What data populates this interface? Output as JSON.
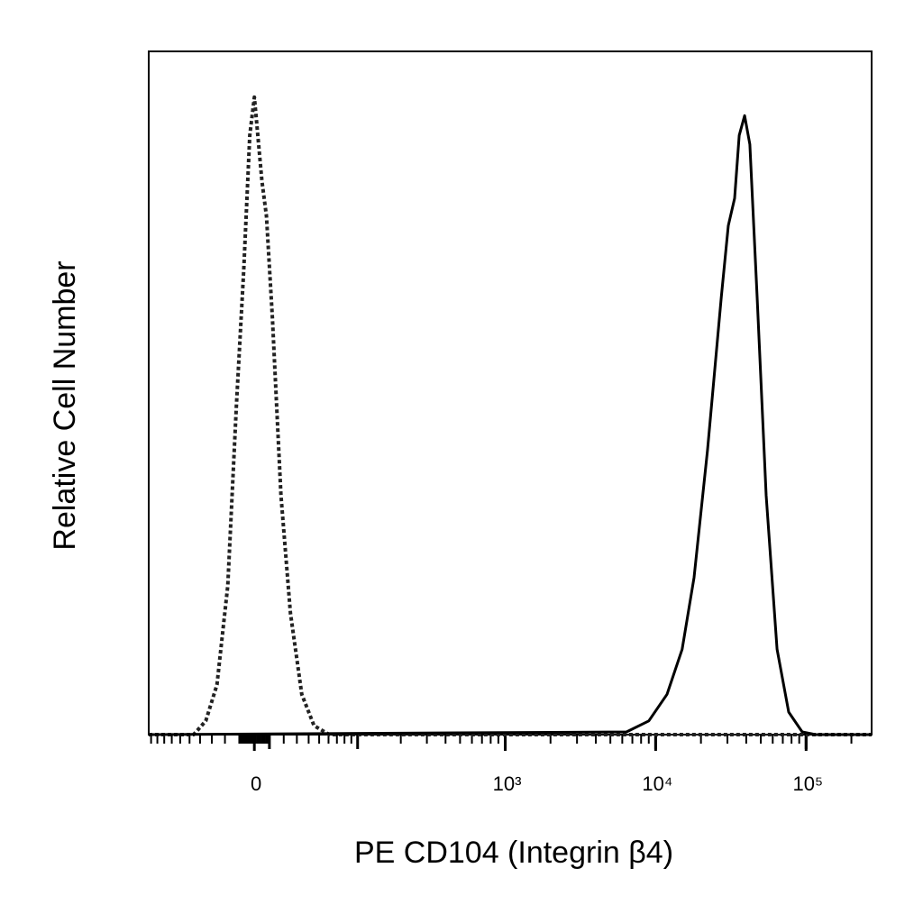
{
  "chart_data": {
    "type": "line",
    "xlabel": "PE  CD104 (Integrin β4)",
    "ylabel": "Relative Cell Number",
    "xscale": "biexponential",
    "xlim": [
      -104,
      272600
    ],
    "ylim": [
      0,
      100
    ],
    "xticks": [
      {
        "value": 0,
        "label": "0"
      },
      {
        "value": 1000,
        "label": "10³"
      },
      {
        "value": 10000,
        "label": "10⁴"
      },
      {
        "value": 100000,
        "label": "10⁵"
      }
    ],
    "series": [
      {
        "color": "#222222",
        "style": "dotted",
        "x": [
          -104,
          -46,
          -35,
          -26,
          -18,
          -12,
          -7,
          -3,
          0,
          5,
          8,
          12,
          18,
          25,
          34,
          45,
          61,
          272600
        ],
        "values": [
          0,
          0,
          2,
          7.3,
          21.8,
          48,
          68,
          87.7,
          93.3,
          81,
          75.9,
          61,
          35,
          17.8,
          5.9,
          1.3,
          0,
          0
        ]
      },
      {
        "color": "#000000",
        "style": "solid",
        "x": [
          -104,
          6400,
          9000,
          11900,
          15000,
          18000,
          22100,
          27300,
          30400,
          33500,
          35900,
          39000,
          42300,
          47300,
          54300,
          64100,
          76600,
          94200,
          115800,
          272600
        ],
        "values": [
          0,
          0.4,
          2,
          5.9,
          12.5,
          23,
          41.6,
          64,
          74.5,
          78.5,
          87.7,
          90.6,
          86.4,
          64,
          35,
          12.5,
          3.3,
          0.4,
          0,
          0
        ]
      }
    ]
  }
}
